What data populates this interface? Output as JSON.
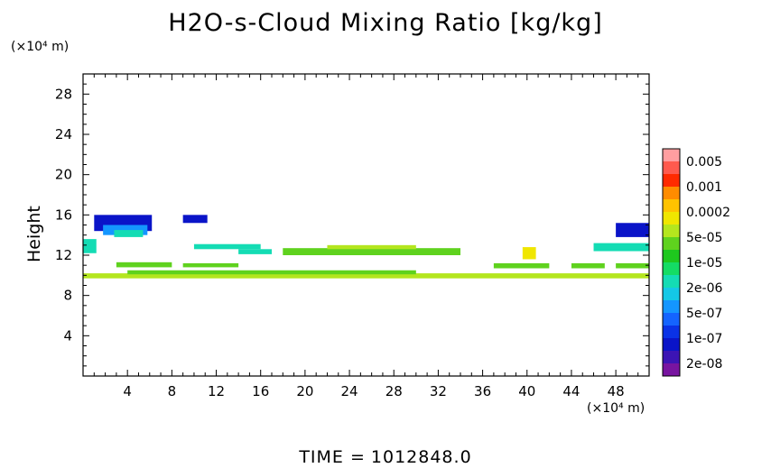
{
  "chart_data": {
    "type": "heatmap",
    "title": "H2O-s-Cloud Mixing Ratio [kg/kg]",
    "xunit": "(×10⁴ m)",
    "yunit": "(×10⁴ m)",
    "ylabel": "Height",
    "xlim": [
      0,
      51
    ],
    "ylim": [
      0,
      30
    ],
    "xticks": [
      4,
      8,
      12,
      16,
      20,
      24,
      28,
      32,
      36,
      40,
      44,
      48
    ],
    "yticks": [
      4,
      8,
      12,
      16,
      20,
      24,
      28
    ],
    "colorbar": {
      "labels": [
        "0.005",
        "0.001",
        "0.0002",
        "5e-05",
        "1e-05",
        "2e-06",
        "5e-07",
        "1e-07",
        "2e-08"
      ],
      "colors": [
        "#ff9ea0",
        "#ff5a4e",
        "#ff2a00",
        "#ff8c00",
        "#ffc300",
        "#f0e600",
        "#b4e61e",
        "#5fd21e",
        "#1ec81e",
        "#14dc64",
        "#14dcb4",
        "#14c8e6",
        "#1496ff",
        "#1464ff",
        "#0a32e6",
        "#0a14c8",
        "#3c14b4",
        "#7814a0"
      ]
    },
    "regions": [
      {
        "x0": 1.0,
        "x1": 6.2,
        "y0": 14.4,
        "y1": 16.0,
        "color": "#0a14c8"
      },
      {
        "x0": 1.8,
        "x1": 5.8,
        "y0": 14.0,
        "y1": 15.0,
        "color": "#1496ff"
      },
      {
        "x0": 2.8,
        "x1": 5.4,
        "y0": 13.8,
        "y1": 14.5,
        "color": "#14dcb4"
      },
      {
        "x0": 9.0,
        "x1": 11.2,
        "y0": 15.2,
        "y1": 16.0,
        "color": "#0a14c8"
      },
      {
        "x0": 0.0,
        "x1": 1.2,
        "y0": 12.2,
        "y1": 13.6,
        "color": "#14dcb4"
      },
      {
        "x0": 10.0,
        "x1": 16.0,
        "y0": 12.6,
        "y1": 13.1,
        "color": "#14dcb4"
      },
      {
        "x0": 14.0,
        "x1": 17.0,
        "y0": 12.1,
        "y1": 12.6,
        "color": "#14dcb4"
      },
      {
        "x0": 18.0,
        "x1": 34.0,
        "y0": 12.0,
        "y1": 12.7,
        "color": "#5fd21e"
      },
      {
        "x0": 22.0,
        "x1": 30.0,
        "y0": 12.6,
        "y1": 13.0,
        "color": "#b4e61e"
      },
      {
        "x0": 39.6,
        "x1": 40.8,
        "y0": 11.6,
        "y1": 12.8,
        "color": "#f0e600"
      },
      {
        "x0": 46.0,
        "x1": 51.0,
        "y0": 12.4,
        "y1": 13.2,
        "color": "#14dcb4"
      },
      {
        "x0": 48.0,
        "x1": 51.0,
        "y0": 13.8,
        "y1": 15.2,
        "color": "#0a14c8"
      },
      {
        "x0": 3.0,
        "x1": 8.0,
        "y0": 10.8,
        "y1": 11.3,
        "color": "#5fd21e"
      },
      {
        "x0": 9.0,
        "x1": 14.0,
        "y0": 10.8,
        "y1": 11.2,
        "color": "#5fd21e"
      },
      {
        "x0": 37.0,
        "x1": 42.0,
        "y0": 10.7,
        "y1": 11.2,
        "color": "#5fd21e"
      },
      {
        "x0": 44.0,
        "x1": 47.0,
        "y0": 10.7,
        "y1": 11.2,
        "color": "#5fd21e"
      },
      {
        "x0": 48.0,
        "x1": 51.0,
        "y0": 10.7,
        "y1": 11.2,
        "color": "#5fd21e"
      },
      {
        "x0": 0.0,
        "x1": 51.0,
        "y0": 9.7,
        "y1": 10.2,
        "color": "#b4e61e"
      },
      {
        "x0": 4.0,
        "x1": 30.0,
        "y0": 10.1,
        "y1": 10.5,
        "color": "#5fd21e"
      }
    ]
  },
  "footer": {
    "time_label": "TIME  =",
    "time_value": "1012848.0"
  }
}
